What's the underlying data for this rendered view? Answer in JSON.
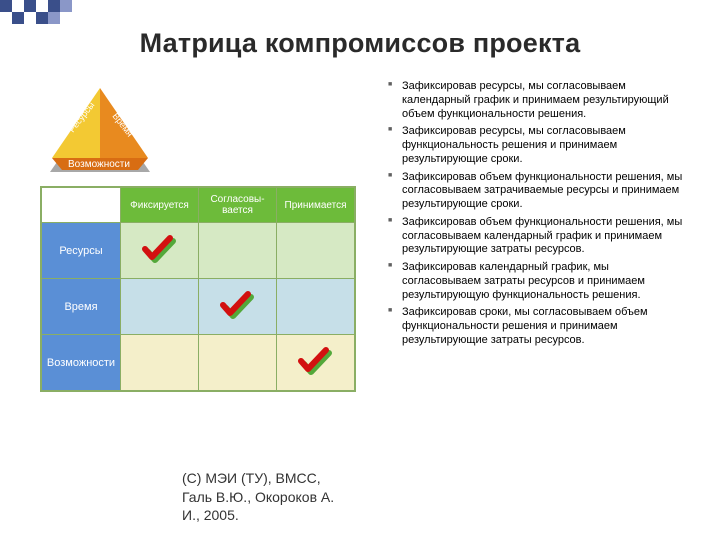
{
  "title": "Матрица компромиссов проекта",
  "pyramid": {
    "faces": [
      "Ресурсы",
      "Время"
    ],
    "base": "Возможности",
    "left_color": "#f3c933",
    "right_color": "#e88a1f",
    "base_color": "#d86d13",
    "shadow_color": "#a8a8a8"
  },
  "matrix": {
    "col_headers": [
      "Фиксируется",
      "Согласовы-вается",
      "Принимается"
    ],
    "col_header_bg": "#6dbb3a",
    "row_headers": [
      "Ресурсы",
      "Время",
      "Возможности"
    ],
    "row_header_bg": "#5a8fd6",
    "row_bg": [
      "#d6e9c4",
      "#c6dfe8",
      "#f4efca"
    ],
    "border_color": "#8aae64",
    "check_positions": [
      [
        0,
        0
      ],
      [
        1,
        1
      ],
      [
        2,
        2
      ]
    ],
    "check_color_front": "#d21010",
    "check_color_back": "#53a83a"
  },
  "bullets": [
    "Зафиксировав ресурсы, мы согласовываем календарный график и принимаем результирующий объем функциональности решения.",
    "Зафиксировав ресурсы, мы согласовываем функциональность решения и принимаем результирующие сроки.",
    "Зафиксировав объем функциональности решения, мы согласовываем затрачиваемые ресурсы и принимаем результирующие сроки.",
    "Зафиксировав объем функциональности решения, мы согласовываем календарный график и принимаем результирующие затраты ресурсов.",
    "Зафиксировав календарный график, мы согласовываем затраты ресурсов и принимаем результирующую функциональность решения.",
    "Зафиксировав сроки, мы согласовываем объем функциональности решения и принимаем результирующие затраты ресурсов."
  ],
  "footer": {
    "line1": "(С) МЭИ (ТУ), ВМСС,",
    "line2": "Галь В.Ю., Окороков А.",
    "line3": "И., 2005."
  },
  "deco": {
    "pattern": [
      "#3a4f8a",
      "#ffffff",
      "#3a4f8a",
      "#ffffff",
      "#3a4f8a",
      "#8a97c8",
      "#ffffff",
      "#ffffff",
      "#ffffff",
      "#ffffff",
      "#ffffff",
      "#3a4f8a",
      "#ffffff",
      "#3a4f8a",
      "#8a97c8",
      "#ffffff",
      "#ffffff",
      "#ffffff",
      "#ffffff",
      "#ffffff"
    ]
  }
}
